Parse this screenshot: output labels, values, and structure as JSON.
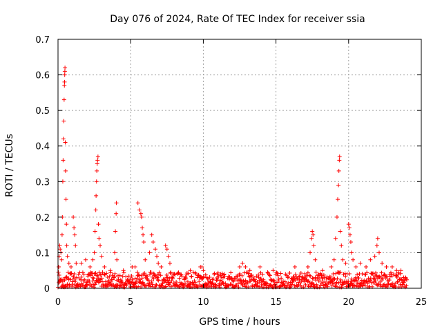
{
  "chart_data": {
    "type": "scatter",
    "title": "Day 076 of 2024, Rate Of TEC Index for receiver ssia",
    "xlabel": "GPS time / hours",
    "ylabel": "ROTI / TECUs",
    "xlim": [
      0,
      25
    ],
    "ylim": [
      0,
      0.7
    ],
    "xticks": [
      "0",
      "5",
      "10",
      "15",
      "20",
      "25"
    ],
    "yticks": [
      "0",
      "0.1",
      "0.2",
      "0.3",
      "0.4",
      "0.5",
      "0.6",
      "0.7"
    ],
    "grid": true,
    "marker": "plus",
    "color": "#ff0000",
    "baseline_band": {
      "description": "dense band of points across the day",
      "x_range": [
        0,
        24
      ],
      "y_range": [
        0.003,
        0.045
      ]
    },
    "series": [
      {
        "name": "ROTI",
        "points": [
          [
            0.05,
            0.06
          ],
          [
            0.08,
            0.09
          ],
          [
            0.12,
            0.12
          ],
          [
            0.15,
            0.11
          ],
          [
            0.2,
            0.1
          ],
          [
            0.25,
            0.08
          ],
          [
            0.28,
            0.15
          ],
          [
            0.3,
            0.2
          ],
          [
            0.33,
            0.3
          ],
          [
            0.35,
            0.36
          ],
          [
            0.37,
            0.42
          ],
          [
            0.4,
            0.47
          ],
          [
            0.42,
            0.53
          ],
          [
            0.44,
            0.57
          ],
          [
            0.45,
            0.58
          ],
          [
            0.46,
            0.6
          ],
          [
            0.47,
            0.61
          ],
          [
            0.48,
            0.62
          ],
          [
            0.5,
            0.41
          ],
          [
            0.52,
            0.33
          ],
          [
            0.55,
            0.25
          ],
          [
            0.58,
            0.18
          ],
          [
            0.6,
            0.12
          ],
          [
            0.65,
            0.09
          ],
          [
            0.75,
            0.07
          ],
          [
            0.9,
            0.06
          ],
          [
            1.05,
            0.2
          ],
          [
            1.1,
            0.17
          ],
          [
            1.15,
            0.15
          ],
          [
            1.2,
            0.12
          ],
          [
            1.25,
            0.07
          ],
          [
            1.6,
            0.07
          ],
          [
            1.9,
            0.08
          ],
          [
            2.2,
            0.06
          ],
          [
            2.4,
            0.08
          ],
          [
            2.5,
            0.1
          ],
          [
            2.55,
            0.16
          ],
          [
            2.6,
            0.22
          ],
          [
            2.62,
            0.26
          ],
          [
            2.65,
            0.3
          ],
          [
            2.67,
            0.33
          ],
          [
            2.7,
            0.35
          ],
          [
            2.72,
            0.36
          ],
          [
            2.75,
            0.37
          ],
          [
            2.78,
            0.18
          ],
          [
            2.82,
            0.14
          ],
          [
            2.9,
            0.12
          ],
          [
            3.0,
            0.09
          ],
          [
            3.2,
            0.06
          ],
          [
            3.6,
            0.05
          ],
          [
            3.9,
            0.1
          ],
          [
            3.95,
            0.16
          ],
          [
            4.0,
            0.21
          ],
          [
            4.02,
            0.24
          ],
          [
            4.05,
            0.08
          ],
          [
            4.5,
            0.05
          ],
          [
            5.1,
            0.06
          ],
          [
            5.3,
            0.06
          ],
          [
            5.5,
            0.24
          ],
          [
            5.6,
            0.22
          ],
          [
            5.7,
            0.21
          ],
          [
            5.75,
            0.2
          ],
          [
            5.8,
            0.17
          ],
          [
            5.85,
            0.15
          ],
          [
            5.9,
            0.13
          ],
          [
            6.0,
            0.08
          ],
          [
            6.3,
            0.1
          ],
          [
            6.45,
            0.15
          ],
          [
            6.55,
            0.13
          ],
          [
            6.7,
            0.11
          ],
          [
            6.8,
            0.09
          ],
          [
            6.9,
            0.07
          ],
          [
            7.1,
            0.06
          ],
          [
            7.4,
            0.12
          ],
          [
            7.5,
            0.11
          ],
          [
            7.6,
            0.09
          ],
          [
            7.7,
            0.07
          ],
          [
            8.0,
            0.04
          ],
          [
            9.1,
            0.05
          ],
          [
            9.8,
            0.06
          ],
          [
            9.9,
            0.06
          ],
          [
            10.0,
            0.05
          ],
          [
            10.2,
            0.03
          ],
          [
            11.2,
            0.04
          ],
          [
            12.5,
            0.06
          ],
          [
            12.7,
            0.07
          ],
          [
            12.9,
            0.06
          ],
          [
            13.2,
            0.05
          ],
          [
            13.9,
            0.06
          ],
          [
            14.8,
            0.05
          ],
          [
            16.3,
            0.06
          ],
          [
            17.2,
            0.06
          ],
          [
            17.35,
            0.1
          ],
          [
            17.45,
            0.14
          ],
          [
            17.5,
            0.16
          ],
          [
            17.55,
            0.15
          ],
          [
            17.6,
            0.12
          ],
          [
            17.7,
            0.08
          ],
          [
            18.2,
            0.05
          ],
          [
            18.8,
            0.06
          ],
          [
            19.0,
            0.08
          ],
          [
            19.1,
            0.14
          ],
          [
            19.2,
            0.2
          ],
          [
            19.25,
            0.25
          ],
          [
            19.3,
            0.29
          ],
          [
            19.33,
            0.33
          ],
          [
            19.36,
            0.36
          ],
          [
            19.38,
            0.37
          ],
          [
            19.42,
            0.16
          ],
          [
            19.5,
            0.12
          ],
          [
            19.6,
            0.08
          ],
          [
            19.8,
            0.07
          ],
          [
            20.0,
            0.18
          ],
          [
            20.05,
            0.17
          ],
          [
            20.1,
            0.15
          ],
          [
            20.15,
            0.13
          ],
          [
            20.2,
            0.1
          ],
          [
            20.3,
            0.08
          ],
          [
            20.5,
            0.06
          ],
          [
            20.8,
            0.07
          ],
          [
            21.2,
            0.06
          ],
          [
            21.5,
            0.08
          ],
          [
            21.8,
            0.09
          ],
          [
            21.95,
            0.12
          ],
          [
            22.0,
            0.14
          ],
          [
            22.1,
            0.1
          ],
          [
            22.3,
            0.07
          ],
          [
            22.6,
            0.06
          ],
          [
            23.0,
            0.06
          ],
          [
            23.3,
            0.05
          ],
          [
            23.6,
            0.05
          ],
          [
            23.9,
            0.03
          ]
        ]
      }
    ]
  }
}
